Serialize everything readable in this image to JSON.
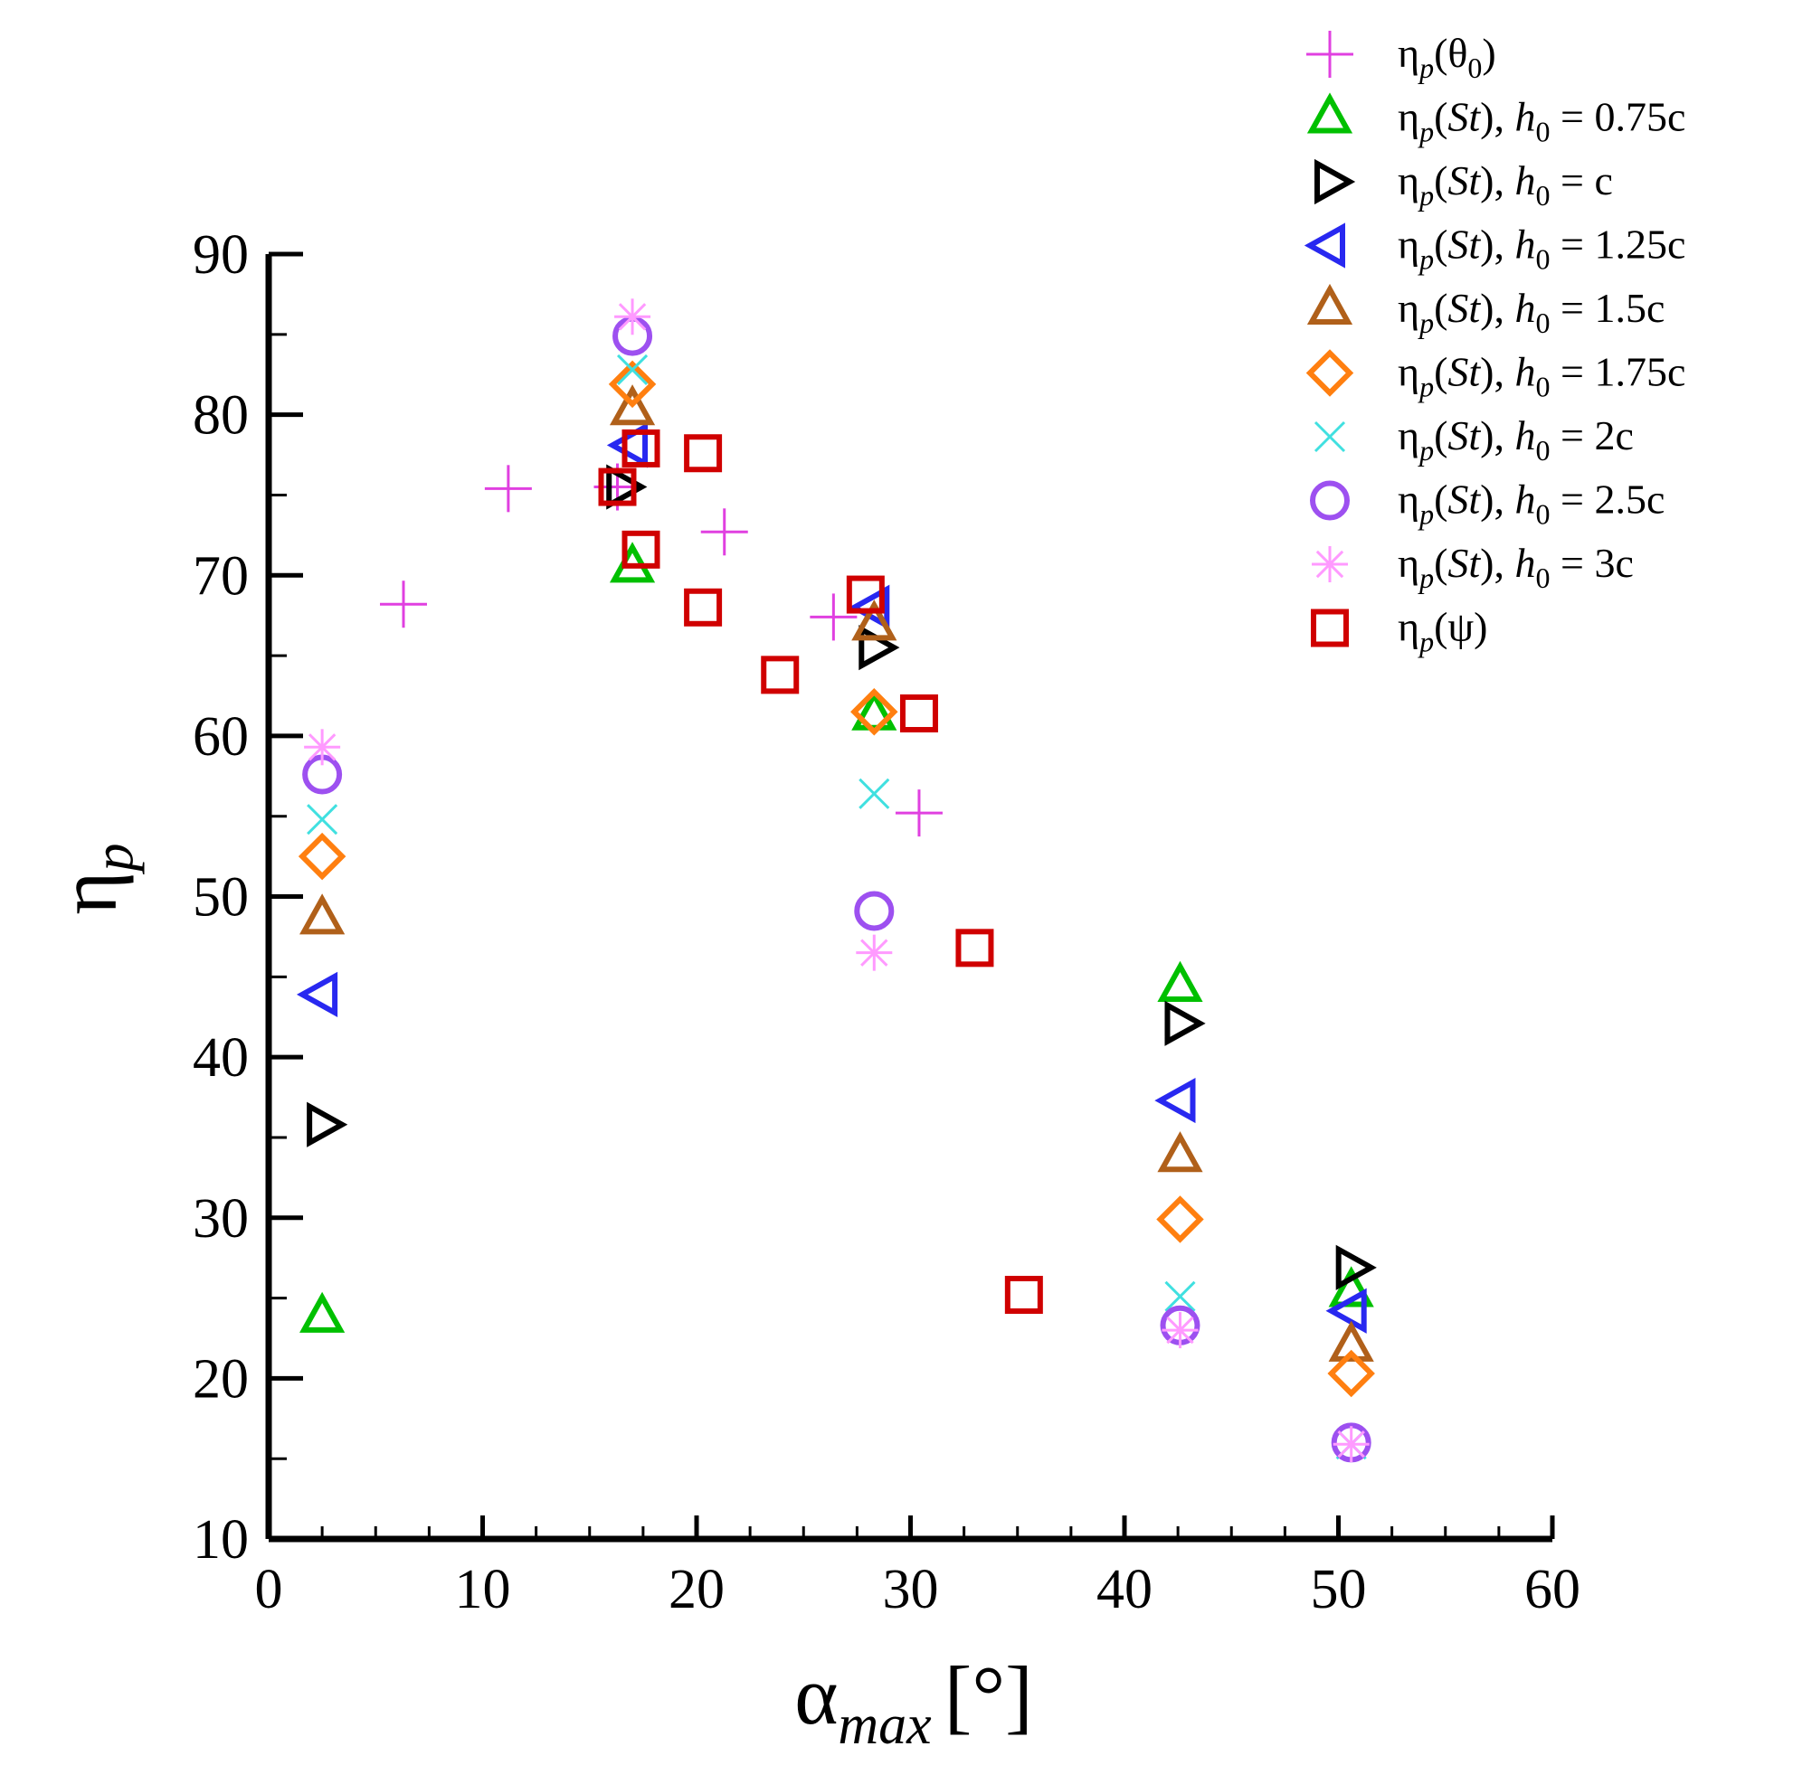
{
  "chart_data": {
    "type": "scatter",
    "title": "",
    "xlabel": "α",
    "xlabel_sub": "max",
    "xlabel_unit": "[°]",
    "ylabel": "η",
    "ylabel_sub": "p",
    "xlim": [
      0,
      60
    ],
    "ylim": [
      10,
      90
    ],
    "x_ticks": [
      "0",
      "10",
      "20",
      "30",
      "40",
      "50",
      "60"
    ],
    "y_ticks": [
      "10",
      "20",
      "30",
      "40",
      "50",
      "60",
      "70",
      "80",
      "90"
    ],
    "grid": false,
    "legend_position": "top-right",
    "series": [
      {
        "name": "ηp(θ0)",
        "legend": {
          "main": "η",
          "sub": "p",
          "rest": "(θ",
          "sub2": "0",
          "tail": ")"
        },
        "marker": "plus",
        "color": "#e040e0",
        "points": [
          [
            6.3,
            68.2
          ],
          [
            11.2,
            75.4
          ],
          [
            16.3,
            75.5
          ],
          [
            21.3,
            72.7
          ],
          [
            26.4,
            67.4
          ],
          [
            30.4,
            55.2
          ]
        ]
      },
      {
        "name": "ηp(St), h0 = 0.75c",
        "legend": {
          "main": "η",
          "sub": "p",
          "rest": "(St), h",
          "sub2": "0",
          "tail": " = 0.75c"
        },
        "marker": "triangle-up",
        "color": "#00c000",
        "points": [
          [
            2.5,
            23.8
          ],
          [
            17.0,
            70.5
          ],
          [
            28.3,
            61.3
          ],
          [
            42.6,
            44.4
          ],
          [
            50.6,
            25.4
          ]
        ]
      },
      {
        "name": "ηp(St), h0 = c",
        "legend": {
          "main": "η",
          "sub": "p",
          "rest": "(St), h",
          "sub2": "0",
          "tail": " = c"
        },
        "marker": "triangle-right",
        "color": "#000000",
        "points": [
          [
            2.5,
            35.8
          ],
          [
            16.5,
            75.5
          ],
          [
            28.3,
            65.5
          ],
          [
            42.6,
            42.1
          ],
          [
            50.6,
            26.9
          ]
        ]
      },
      {
        "name": "ηp(St), h0 = 1.25c",
        "legend": {
          "main": "η",
          "sub": "p",
          "rest": "(St), h",
          "sub2": "0",
          "tail": " = 1.25c"
        },
        "marker": "triangle-left",
        "color": "#2828f0",
        "points": [
          [
            2.5,
            43.9
          ],
          [
            17.0,
            78.1
          ],
          [
            28.3,
            68.0
          ],
          [
            42.6,
            37.3
          ],
          [
            50.6,
            24.2
          ]
        ]
      },
      {
        "name": "ηp(St), h0 = 1.5c",
        "legend": {
          "main": "η",
          "sub": "p",
          "rest": "(St), h",
          "sub2": "0",
          "tail": " = 1.5c"
        },
        "marker": "triangle-up",
        "color": "#b0601a",
        "points": [
          [
            2.5,
            48.6
          ],
          [
            17.0,
            80.3
          ],
          [
            28.3,
            66.9
          ],
          [
            42.6,
            33.8
          ],
          [
            50.6,
            22.0
          ]
        ]
      },
      {
        "name": "ηp(St), h0 = 1.75c",
        "legend": {
          "main": "η",
          "sub": "p",
          "rest": "(St), h",
          "sub2": "0",
          "tail": " = 1.75c"
        },
        "marker": "diamond",
        "color": "#ff7f10",
        "points": [
          [
            2.5,
            52.5
          ],
          [
            17.0,
            81.9
          ],
          [
            28.3,
            61.5
          ],
          [
            42.6,
            29.9
          ],
          [
            50.6,
            20.3
          ]
        ]
      },
      {
        "name": "ηp(St), h0 = 2c",
        "legend": {
          "main": "η",
          "sub": "p",
          "rest": "(St), h",
          "sub2": "0",
          "tail": " = 2c"
        },
        "marker": "x",
        "color": "#40e0e0",
        "points": [
          [
            2.5,
            54.8
          ],
          [
            17.0,
            82.8
          ],
          [
            28.3,
            56.4
          ],
          [
            42.6,
            25.1
          ],
          [
            50.6,
            15.9
          ]
        ]
      },
      {
        "name": "ηp(St), h0 = 2.5c",
        "legend": {
          "main": "η",
          "sub": "p",
          "rest": "(St), h",
          "sub2": "0",
          "tail": " = 2.5c"
        },
        "marker": "circle",
        "color": "#9d50f0",
        "points": [
          [
            2.5,
            57.6
          ],
          [
            17.0,
            84.9
          ],
          [
            28.3,
            49.1
          ],
          [
            42.6,
            23.3
          ],
          [
            50.6,
            16.0
          ]
        ]
      },
      {
        "name": "ηp(St), h0 = 3c",
        "legend": {
          "main": "η",
          "sub": "p",
          "rest": "(St), h",
          "sub2": "0",
          "tail": " = 3c"
        },
        "marker": "asterisk",
        "color": "#ff9aff",
        "points": [
          [
            2.5,
            59.3
          ],
          [
            17.0,
            86.1
          ],
          [
            28.3,
            46.5
          ],
          [
            42.6,
            23.0
          ],
          [
            50.6,
            15.9
          ]
        ]
      },
      {
        "name": "ηp(ψ)",
        "legend": {
          "main": "η",
          "sub": "p",
          "rest": "(ψ)",
          "sub2": "",
          "tail": ""
        },
        "marker": "square",
        "color": "#d00000",
        "points": [
          [
            16.3,
            75.5
          ],
          [
            17.4,
            77.9
          ],
          [
            17.4,
            71.6
          ],
          [
            20.3,
            77.6
          ],
          [
            20.3,
            68.0
          ],
          [
            23.9,
            63.8
          ],
          [
            27.9,
            68.8
          ],
          [
            30.4,
            61.4
          ],
          [
            33.0,
            46.8
          ],
          [
            35.3,
            25.2
          ]
        ]
      }
    ]
  }
}
